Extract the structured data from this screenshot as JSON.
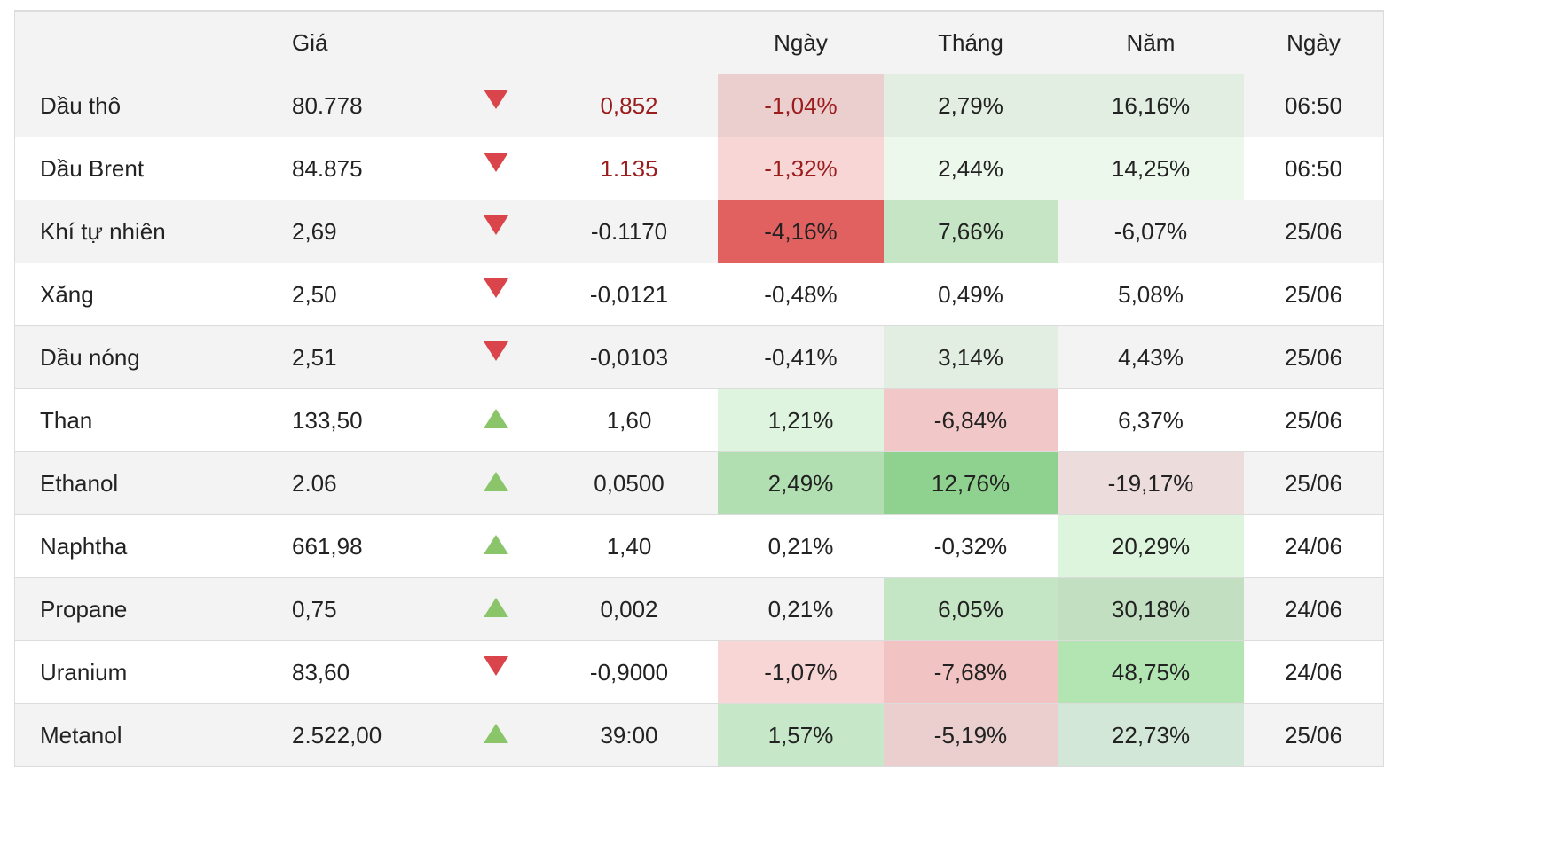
{
  "header": {
    "col_name": "",
    "col_price": "Giá",
    "col_arrow": "",
    "col_change": "",
    "col_day": "Ngày",
    "col_month": "Tháng",
    "col_year": "Năm",
    "col_date": "Ngày"
  },
  "colors": {
    "down_arrow": "#d9454b",
    "up_arrow": "#8bc56a",
    "dark_red_text": "#9b1c1c"
  },
  "rows": [
    {
      "name": "Dầu thô",
      "price": "80.778",
      "direction": "down",
      "change": "0,852",
      "day": "-1,04%",
      "month": "2,79%",
      "year": "16,16%",
      "date": "06:50",
      "change_color": "#9b1c1c",
      "day_color": "#9b1c1c",
      "day_bg": "#ebcfcf",
      "month_bg": "#e2eee2",
      "year_bg": "#e2eee2"
    },
    {
      "name": "Dầu Brent",
      "price": "84.875",
      "direction": "down",
      "change": "1.135",
      "day": "-1,32%",
      "month": "2,44%",
      "year": "14,25%",
      "date": "06:50",
      "change_color": "#9b1c1c",
      "day_color": "#9b1c1c",
      "day_bg": "#f8d6d6",
      "month_bg": "#edf8ec",
      "year_bg": "#edf8ec"
    },
    {
      "name": "Khí tự nhiên",
      "price": "2,69",
      "direction": "down",
      "change": "-0.1170",
      "day": "-4,16%",
      "month": "7,66%",
      "year": "-6,07%",
      "date": "25/06",
      "change_color": "",
      "day_color": "",
      "day_bg": "#e06160",
      "month_bg": "#c5e5c5",
      "year_bg": ""
    },
    {
      "name": "Xăng",
      "price": "2,50",
      "direction": "down",
      "change": "-0,0121",
      "day": "-0,48%",
      "month": "0,49%",
      "year": "5,08%",
      "date": "25/06",
      "change_color": "",
      "day_color": "",
      "day_bg": "",
      "month_bg": "",
      "year_bg": ""
    },
    {
      "name": "Dầu nóng",
      "price": "2,51",
      "direction": "down",
      "change": "-0,0103",
      "day": "-0,41%",
      "month": "3,14%",
      "year": "4,43%",
      "date": "25/06",
      "change_color": "",
      "day_color": "",
      "day_bg": "",
      "month_bg": "#e2eee2",
      "year_bg": ""
    },
    {
      "name": "Than",
      "price": "133,50",
      "direction": "up",
      "change": "1,60",
      "day": "1,21%",
      "month": "-6,84%",
      "year": "6,37%",
      "date": "25/06",
      "change_color": "",
      "day_color": "",
      "day_bg": "#def4de",
      "month_bg": "#f2c7c7",
      "year_bg": ""
    },
    {
      "name": "Ethanol",
      "price": "2.06",
      "direction": "up",
      "change": "0,0500",
      "day": "2,49%",
      "month": "12,76%",
      "year": "-19,17%",
      "date": "25/06",
      "change_color": "",
      "day_color": "",
      "day_bg": "#b1dfb2",
      "month_bg": "#8fd18f",
      "year_bg": "#ecdcdc"
    },
    {
      "name": "Naphtha",
      "price": "661,98",
      "direction": "up",
      "change": "1,40",
      "day": "0,21%",
      "month": "-0,32%",
      "year": "20,29%",
      "date": "24/06",
      "change_color": "",
      "day_color": "",
      "day_bg": "",
      "month_bg": "",
      "year_bg": "#dcf5dc"
    },
    {
      "name": "Propane",
      "price": "0,75",
      "direction": "up",
      "change": "0,002",
      "day": "0,21%",
      "month": "6,05%",
      "year": "30,18%",
      "date": "24/06",
      "change_color": "",
      "day_color": "",
      "day_bg": "",
      "month_bg": "#c5e6c5",
      "year_bg": "#c2dfc2"
    },
    {
      "name": "Uranium",
      "price": "83,60",
      "direction": "down",
      "change": "-0,9000",
      "day": "-1,07%",
      "month": "-7,68%",
      "year": "48,75%",
      "date": "24/06",
      "change_color": "",
      "day_color": "",
      "day_bg": "#f8d6d6",
      "month_bg": "#f2c3c3",
      "year_bg": "#b2e5b2"
    },
    {
      "name": "Metanol",
      "price": "2.522,00",
      "direction": "up",
      "change": "39:00",
      "day": "1,57%",
      "month": "-5,19%",
      "year": "22,73%",
      "date": "25/06",
      "change_color": "",
      "day_color": "",
      "day_bg": "#c6e8c8",
      "month_bg": "#ebcfcf",
      "year_bg": "#d3e7d8"
    }
  ]
}
